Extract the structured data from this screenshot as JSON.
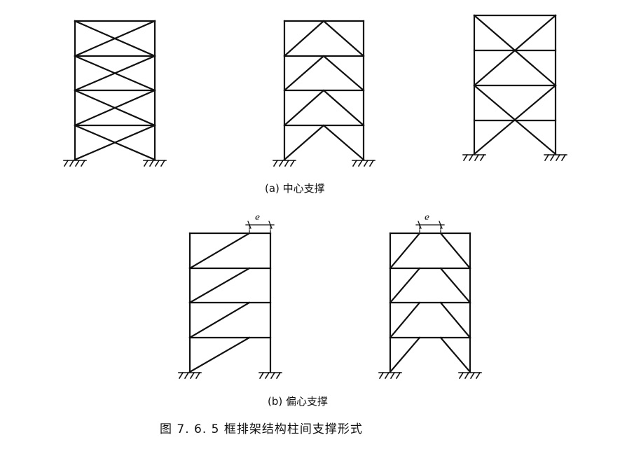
{
  "captions": {
    "a": "(a) 中心支撑",
    "b": "(b) 偏心支撑",
    "figure": "图 7. 6. 5   框排架结构柱间支撑形式"
  },
  "labels": {
    "e1": "e",
    "e2": "e"
  }
}
